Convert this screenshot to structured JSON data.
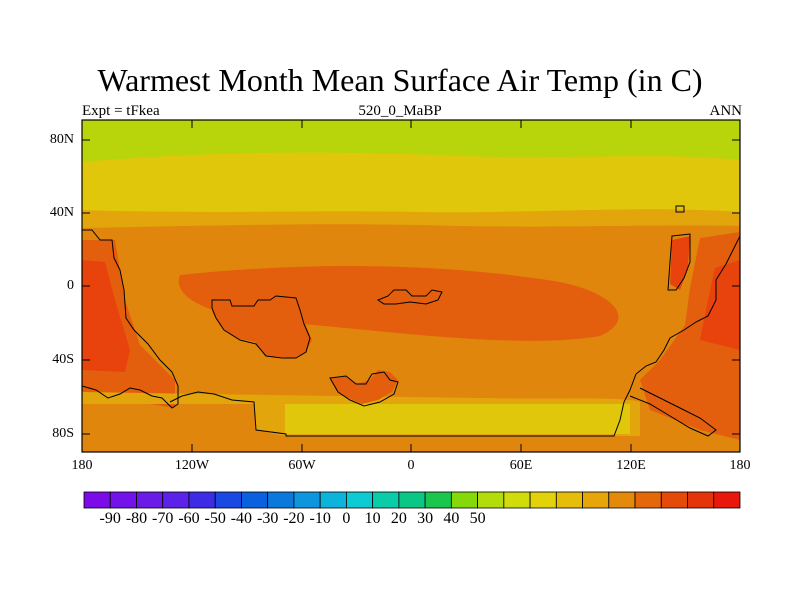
{
  "figure": {
    "title": "Warmest Month Mean Surface Air Temp (in C)",
    "left_label": "Expt = tFkea",
    "center_label": "520_0_MaBP",
    "right_label": "ANN"
  },
  "map": {
    "lat_ticks": [
      "80N",
      "40N",
      "0",
      "40S",
      "80S"
    ],
    "lon_ticks": [
      "180",
      "120W",
      "60W",
      "0",
      "60E",
      "120E",
      "180"
    ]
  },
  "colorbar": {
    "labels": [
      "-90",
      "-80",
      "-70",
      "-60",
      "-50",
      "-40",
      "-30",
      "-20",
      "-10",
      "0",
      "10",
      "20",
      "30",
      "40",
      "50"
    ],
    "colors": [
      "#7d0be8",
      "#7213ea",
      "#6a1be7",
      "#5b22e8",
      "#3e2be6",
      "#1a48e3",
      "#0b60dd",
      "#0b78dc",
      "#0d95dd",
      "#0db3da",
      "#0dcbd3",
      "#0bcca8",
      "#0bc786",
      "#1bc64f",
      "#85d90a",
      "#b2dd0a",
      "#d1dd0a",
      "#e2d20a",
      "#e6be0a",
      "#e6a60a",
      "#e48a0a",
      "#e4670a",
      "#e44a0a",
      "#e6340a",
      "#e8190a"
    ]
  },
  "legend": {
    "warmest_band": "#e8430c",
    "hot_band": "#e35f0d",
    "warm_band": "#e1860c",
    "mild_band": "#e2a50b",
    "cool_band": "#e1c70b",
    "cold_band": "#b8d40a"
  }
}
